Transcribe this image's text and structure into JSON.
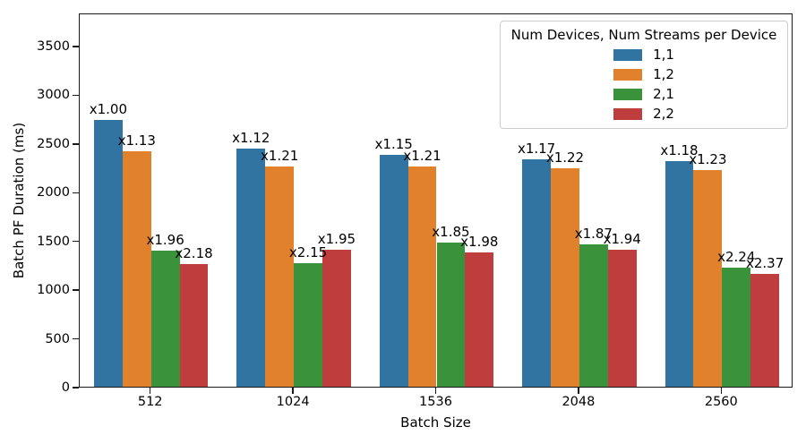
{
  "chart_data": {
    "type": "bar",
    "title": "",
    "xlabel": "Batch Size",
    "ylabel": "Batch PF Duration (ms)",
    "categories": [
      "512",
      "1024",
      "1536",
      "2048",
      "2560"
    ],
    "yticks": [
      0,
      500,
      1000,
      1500,
      2000,
      2500,
      3000,
      3500
    ],
    "ylim": [
      0,
      3840
    ],
    "grid": false,
    "legend_title": "Num Devices, Num Streams per Device",
    "legend_position": "upper right",
    "bar_group_width_fraction": 0.8,
    "series": [
      {
        "name": "1,1",
        "color": "#3274a1",
        "values": [
          2735,
          2442,
          2378,
          2338,
          2318
        ],
        "annotations": [
          "x1.00",
          "x1.12",
          "x1.15",
          "x1.17",
          "x1.18"
        ]
      },
      {
        "name": "1,2",
        "color": "#e1812c",
        "values": [
          2420,
          2260,
          2260,
          2242,
          2224
        ],
        "annotations": [
          "x1.13",
          "x1.21",
          "x1.21",
          "x1.22",
          "x1.23"
        ]
      },
      {
        "name": "2,1",
        "color": "#3a923a",
        "values": [
          1395,
          1272,
          1478,
          1463,
          1221
        ],
        "annotations": [
          "x1.96",
          "x2.15",
          "x1.85",
          "x1.87",
          "x2.24"
        ]
      },
      {
        "name": "2,2",
        "color": "#c03d3e",
        "values": [
          1255,
          1403,
          1381,
          1410,
          1154
        ],
        "annotations": [
          "x2.18",
          "x1.95",
          "x1.98",
          "x1.94",
          "x2.37"
        ]
      }
    ]
  }
}
